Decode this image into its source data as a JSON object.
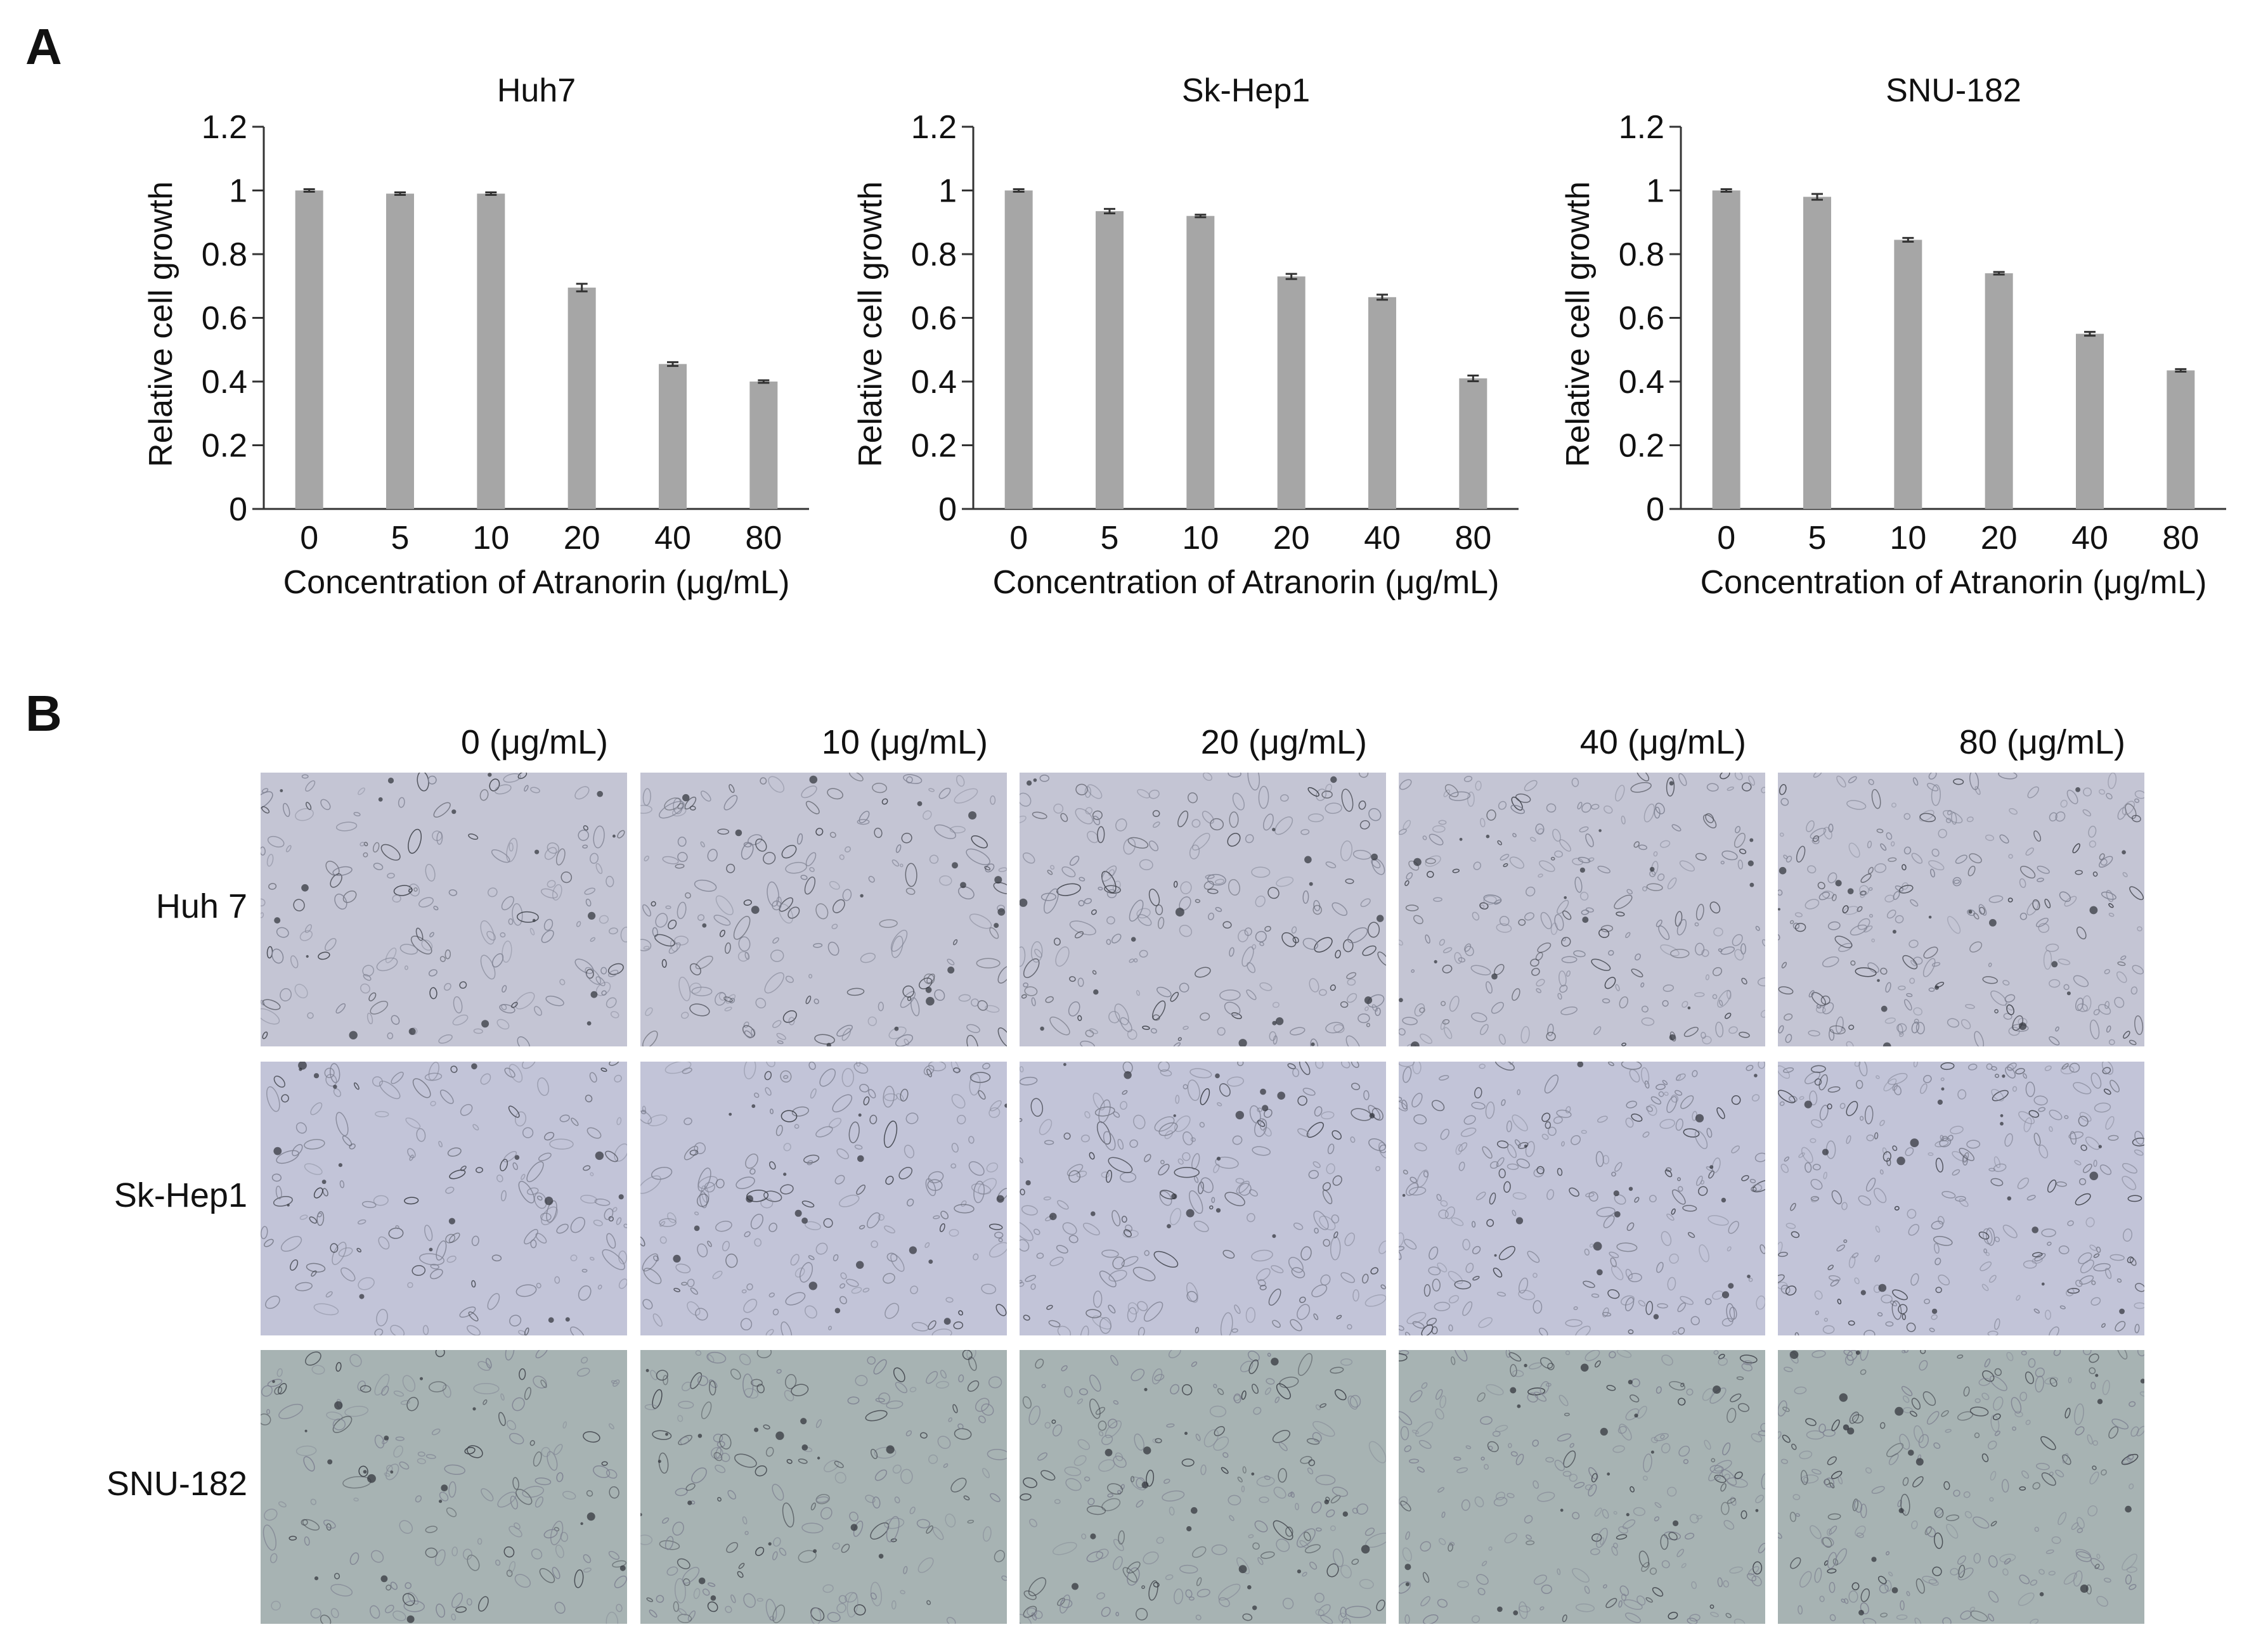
{
  "panel_labels": {
    "a": "A",
    "b": "B"
  },
  "chart_data": [
    {
      "type": "bar",
      "title": "Huh7",
      "categories": [
        "0",
        "5",
        "10",
        "20",
        "40",
        "80"
      ],
      "values": [
        1.0,
        0.99,
        0.99,
        0.695,
        0.455,
        0.4
      ],
      "errors": [
        0.004,
        0.004,
        0.004,
        0.012,
        0.006,
        0.004
      ],
      "xlabel": "Concentration of Atranorin (μg/mL)",
      "ylabel": "Relative cell growth",
      "ylim": [
        0,
        1.2
      ],
      "yticks": [
        "0",
        "0.2",
        "0.4",
        "0.6",
        "0.8",
        "1",
        "1.2"
      ],
      "grid": false,
      "bar_color": "#a6a6a6"
    },
    {
      "type": "bar",
      "title": "Sk-Hep1",
      "categories": [
        "0",
        "5",
        "10",
        "20",
        "40",
        "80"
      ],
      "values": [
        1.0,
        0.935,
        0.92,
        0.73,
        0.665,
        0.41
      ],
      "errors": [
        0.004,
        0.007,
        0.004,
        0.008,
        0.008,
        0.009
      ],
      "xlabel": "Concentration of Atranorin (μg/mL)",
      "ylabel": "Relative cell growth",
      "ylim": [
        0,
        1.2
      ],
      "yticks": [
        "0",
        "0.2",
        "0.4",
        "0.6",
        "0.8",
        "1",
        "1.2"
      ],
      "grid": false,
      "bar_color": "#a6a6a6"
    },
    {
      "type": "bar",
      "title": "SNU-182",
      "categories": [
        "0",
        "5",
        "10",
        "20",
        "40",
        "80"
      ],
      "values": [
        1.0,
        0.98,
        0.845,
        0.74,
        0.55,
        0.435
      ],
      "errors": [
        0.004,
        0.009,
        0.006,
        0.004,
        0.006,
        0.004
      ],
      "xlabel": "Concentration of Atranorin (μg/mL)",
      "ylabel": "Relative cell growth",
      "ylim": [
        0,
        1.2
      ],
      "yticks": [
        "0",
        "0.2",
        "0.4",
        "0.6",
        "0.8",
        "1",
        "1.2"
      ],
      "grid": false,
      "bar_color": "#a6a6a6"
    }
  ],
  "micrographs": {
    "column_labels": [
      "0 (μg/mL)",
      "10 (μg/mL)",
      "20 (μg/mL)",
      "40 (μg/mL)",
      "80 (μg/mL)"
    ],
    "row_labels": [
      "Huh 7",
      "Sk-Hep1",
      "SNU-182"
    ],
    "row_tints": [
      "#c4c5d4",
      "#c2c4d8",
      "#a7b3b3"
    ]
  }
}
